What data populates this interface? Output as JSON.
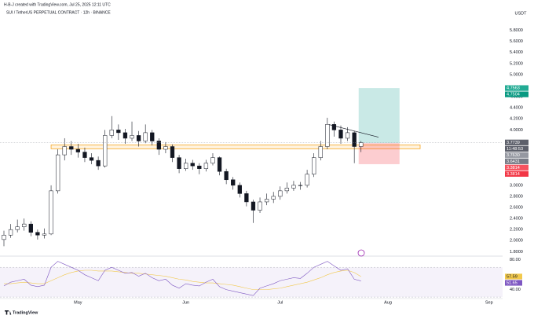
{
  "header": {
    "credit": "H-B-J created with TradingView.com, Jul 25, 2025 12:11 UTC",
    "symbol": "SUI / TetherUS PERPETUAL CONTRACT · 12h · BINANCE",
    "currency": "USDT",
    "footer": "TradingView"
  },
  "chart_data": {
    "type": "candlestick",
    "categories": [
      null,
      null,
      null,
      null,
      null,
      null,
      null,
      null,
      null,
      null,
      null,
      "May",
      null,
      null,
      null,
      null,
      null,
      null,
      null,
      null,
      null,
      null,
      null,
      null,
      null,
      null,
      null,
      "Jun",
      null,
      null,
      null,
      null,
      null,
      null,
      null,
      null,
      null,
      null,
      null,
      null,
      null,
      "Jul",
      null,
      null,
      null,
      null,
      null,
      null,
      null,
      null,
      null,
      null,
      null,
      null,
      null,
      null,
      null,
      "Aug",
      null,
      null,
      null,
      null,
      null,
      null,
      null,
      null,
      null,
      null,
      null,
      null,
      null,
      null,
      "Sep",
      null,
      null
    ],
    "open": [
      2.02,
      2.1,
      2.2,
      2.25,
      2.3,
      2.15,
      2.1,
      2.12,
      2.9,
      3.55,
      3.7,
      3.65,
      3.6,
      3.5,
      3.45,
      3.35,
      3.9,
      4.0,
      3.95,
      3.85,
      3.9,
      3.8,
      3.95,
      3.8,
      3.65,
      3.7,
      3.5,
      3.3,
      3.4,
      3.35,
      3.3,
      3.4,
      3.5,
      3.25,
      3.1,
      3.0,
      2.85,
      2.7,
      2.55,
      2.7,
      2.75,
      2.8,
      2.9,
      2.95,
      3.0,
      3.0,
      3.2,
      3.5,
      3.7,
      4.1,
      4.0,
      3.85,
      3.95,
      3.7,
      null,
      null,
      null,
      null,
      null,
      null,
      null,
      null,
      null,
      null,
      null,
      null,
      null,
      null,
      null,
      null,
      null,
      null,
      null,
      null,
      null
    ],
    "high": [
      2.18,
      2.3,
      2.38,
      2.4,
      2.35,
      2.2,
      2.22,
      3.0,
      3.65,
      3.85,
      3.8,
      3.75,
      3.68,
      3.58,
      3.52,
      4.0,
      4.25,
      4.1,
      4.02,
      4.15,
      3.98,
      4.1,
      4.0,
      3.85,
      3.78,
      3.74,
      3.55,
      3.48,
      3.46,
      3.4,
      3.46,
      3.58,
      3.52,
      3.3,
      3.15,
      3.05,
      2.9,
      2.74,
      2.78,
      2.85,
      2.88,
      2.98,
      3.05,
      3.08,
      3.06,
      3.28,
      3.58,
      3.8,
      4.22,
      4.15,
      4.08,
      4.05,
      3.98,
      3.8,
      null,
      null,
      null,
      null,
      null,
      null,
      null,
      null,
      null,
      null,
      null,
      null,
      null,
      null,
      null,
      null,
      null,
      null,
      null,
      null,
      null
    ],
    "low": [
      1.9,
      2.05,
      2.15,
      2.18,
      2.08,
      2.02,
      2.04,
      2.1,
      2.85,
      3.45,
      3.55,
      3.5,
      3.42,
      3.38,
      3.28,
      3.32,
      3.85,
      3.82,
      3.75,
      3.8,
      3.7,
      3.76,
      3.72,
      3.55,
      3.58,
      3.42,
      3.22,
      3.26,
      3.28,
      3.2,
      3.25,
      3.36,
      3.18,
      3.02,
      2.92,
      2.78,
      2.62,
      2.32,
      2.5,
      2.64,
      2.68,
      2.74,
      2.85,
      2.9,
      2.92,
      2.96,
      3.15,
      3.45,
      3.65,
      3.88,
      3.75,
      3.8,
      3.4,
      3.6,
      null,
      null,
      null,
      null,
      null,
      null,
      null,
      null,
      null,
      null,
      null,
      null,
      null,
      null,
      null,
      null,
      null,
      null,
      null,
      null,
      null
    ],
    "close": [
      2.1,
      2.2,
      2.25,
      2.3,
      2.15,
      2.1,
      2.12,
      2.9,
      3.55,
      3.7,
      3.65,
      3.6,
      3.5,
      3.45,
      3.35,
      3.9,
      4.0,
      3.95,
      3.85,
      3.9,
      3.8,
      3.95,
      3.8,
      3.65,
      3.7,
      3.5,
      3.3,
      3.4,
      3.35,
      3.3,
      3.4,
      3.5,
      3.25,
      3.1,
      3.0,
      2.85,
      2.7,
      2.55,
      2.7,
      2.75,
      2.8,
      2.9,
      2.95,
      3.0,
      3.0,
      3.2,
      3.5,
      3.7,
      4.1,
      4.0,
      3.85,
      3.95,
      3.7,
      3.77,
      null,
      null,
      null,
      null,
      null,
      null,
      null,
      null,
      null,
      null,
      null,
      null,
      null,
      null,
      null,
      null,
      null,
      null,
      null,
      null,
      null
    ],
    "color": "#131722",
    "ylim": [
      1.72,
      5.95
    ],
    "yticks": [
      {
        "value": 1.8,
        "label": "1.8000"
      },
      {
        "value": 2.0,
        "label": "2.0000"
      },
      {
        "value": 2.2,
        "label": "2.2000"
      },
      {
        "value": 2.4,
        "label": "2.4000"
      },
      {
        "value": 2.6,
        "label": "2.6000"
      },
      {
        "value": 2.8,
        "label": "2.8000"
      },
      {
        "value": 3.0,
        "label": "3.0000"
      },
      {
        "value": 3.2,
        "label": "3.2000"
      },
      {
        "value": 4.0,
        "label": "4.0000"
      },
      {
        "value": 4.2,
        "label": "4.2000"
      },
      {
        "value": 4.4,
        "label": "4.4000"
      },
      {
        "value": 4.6,
        "label": "4.6000"
      },
      {
        "value": 5.0,
        "label": "5.0000"
      },
      {
        "value": 5.2,
        "label": "5.2000"
      },
      {
        "value": 5.4,
        "label": "5.4000"
      },
      {
        "value": 5.6,
        "label": "5.6000"
      },
      {
        "value": 5.8,
        "label": "5.8000"
      }
    ],
    "grid": false,
    "zone": [
      3.66,
      3.73
    ],
    "trendline": [
      4.1,
      3.87
    ],
    "position": {
      "target": 4.7563,
      "entry": 3.763,
      "stop": 3.3814
    },
    "price_labels": [
      {
        "value": 4.7563,
        "color": "#22ab94"
      },
      {
        "value": 4.7504,
        "color": "#089981"
      },
      {
        "value": 3.7739,
        "color": "#5d606b"
      },
      {
        "value": 3.763,
        "label": "3.7630",
        "color": "#9598a1"
      },
      {
        "value": 3.6431,
        "color": "#787b86"
      },
      {
        "value": 3.3814,
        "color": "#f7525f"
      },
      {
        "value": 3.3814,
        "color": "#f23645"
      }
    ],
    "countdown": "11:48:53",
    "rsi": {
      "ylim": [
        28,
        85
      ],
      "yticks": [
        {
          "value": 80,
          "label": "80.00"
        },
        {
          "value": 40,
          "label": "40.00"
        }
      ],
      "band": [
        30,
        70
      ],
      "series": [
        {
          "color": "#7e57c2",
          "values": [
            45,
            50,
            52,
            54,
            46,
            44,
            46,
            70,
            78,
            74,
            70,
            66,
            60,
            56,
            52,
            66,
            70,
            66,
            62,
            63,
            58,
            62,
            56,
            52,
            54,
            46,
            42,
            48,
            46,
            45,
            50,
            54,
            44,
            40,
            38,
            36,
            34,
            32,
            42,
            45,
            48,
            52,
            54,
            56,
            55,
            62,
            70,
            74,
            78,
            72,
            66,
            68,
            54,
            51.65,
            null,
            null,
            null,
            null,
            null,
            null,
            null,
            null,
            null,
            null,
            null,
            null,
            null,
            null,
            null,
            null,
            null,
            null,
            null,
            null,
            null
          ]
        },
        {
          "color": "#f2c94c",
          "values": [
            48,
            48,
            49,
            50,
            49,
            48,
            48,
            52,
            56,
            60,
            63,
            65,
            66,
            66,
            65,
            65,
            65,
            64,
            63,
            62,
            62,
            61,
            60,
            59,
            58,
            56,
            54,
            53,
            51,
            50,
            49,
            49,
            48,
            47,
            46,
            44,
            42,
            40,
            40,
            40,
            41,
            42,
            44,
            46,
            48,
            50,
            53,
            56,
            60,
            63,
            65,
            66,
            63,
            57.59,
            null,
            null,
            null,
            null,
            null,
            null,
            null,
            null,
            null,
            null,
            null,
            null,
            null,
            null,
            null,
            null,
            null,
            null,
            null,
            null,
            null
          ]
        }
      ]
    }
  }
}
